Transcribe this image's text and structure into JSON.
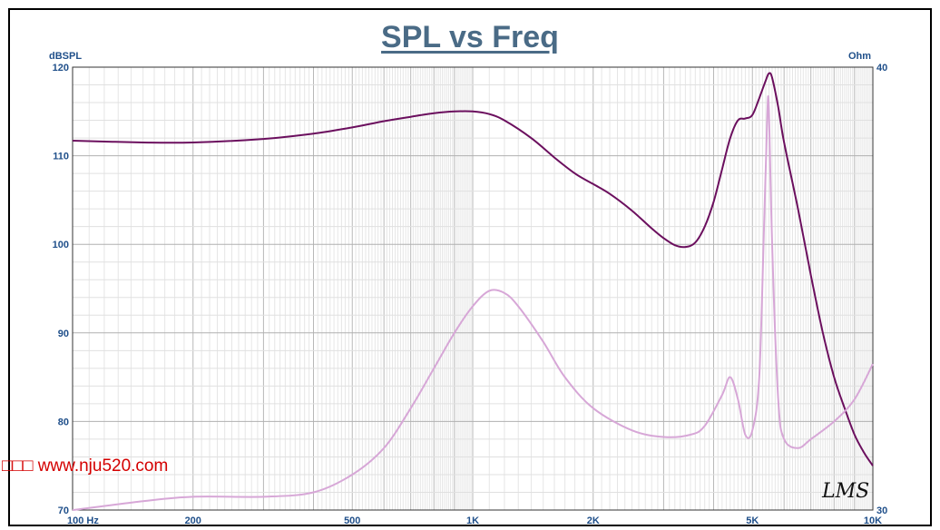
{
  "chart_data": {
    "type": "line",
    "title": "SPL vs Freq",
    "y_left_label": "dBSPL",
    "y_right_label": "Ohm",
    "xscale": "log",
    "xlim": [
      100,
      10000
    ],
    "ylim": [
      70,
      120
    ],
    "y2lim": [
      30,
      40
    ],
    "x_tick_labels": [
      {
        "value": 100,
        "label": "100 Hz"
      },
      {
        "value": 200,
        "label": "200"
      },
      {
        "value": 500,
        "label": "500"
      },
      {
        "value": 1000,
        "label": "1K"
      },
      {
        "value": 2000,
        "label": "2K"
      },
      {
        "value": 5000,
        "label": "5K"
      },
      {
        "value": 10000,
        "label": "10K"
      }
    ],
    "y_left_ticks": [
      70,
      80,
      90,
      100,
      110,
      120
    ],
    "y_right_ticks": [
      30,
      40
    ],
    "grid": true,
    "series": [
      {
        "axis": "left",
        "color": "#6b0f5e",
        "points": [
          [
            100,
            111.7
          ],
          [
            150,
            111.5
          ],
          [
            200,
            111.5
          ],
          [
            300,
            111.9
          ],
          [
            400,
            112.5
          ],
          [
            500,
            113.2
          ],
          [
            600,
            113.9
          ],
          [
            700,
            114.4
          ],
          [
            800,
            114.8
          ],
          [
            900,
            115.0
          ],
          [
            1000,
            115.0
          ],
          [
            1100,
            114.7
          ],
          [
            1200,
            114.0
          ],
          [
            1400,
            112.0
          ],
          [
            1600,
            109.8
          ],
          [
            1800,
            108.0
          ],
          [
            2000,
            106.8
          ],
          [
            2200,
            105.7
          ],
          [
            2500,
            103.8
          ],
          [
            2800,
            101.8
          ],
          [
            3000,
            100.7
          ],
          [
            3200,
            99.9
          ],
          [
            3400,
            99.7
          ],
          [
            3600,
            100.2
          ],
          [
            3800,
            102.0
          ],
          [
            4000,
            104.8
          ],
          [
            4200,
            108.5
          ],
          [
            4400,
            112.0
          ],
          [
            4600,
            114.0
          ],
          [
            4800,
            114.2
          ],
          [
            5000,
            114.6
          ],
          [
            5200,
            116.5
          ],
          [
            5400,
            118.5
          ],
          [
            5500,
            119.3
          ],
          [
            5600,
            118.8
          ],
          [
            5800,
            115.5
          ],
          [
            6000,
            111.5
          ],
          [
            6500,
            104.0
          ],
          [
            7000,
            96.5
          ],
          [
            7500,
            90.0
          ],
          [
            8000,
            85.0
          ],
          [
            8500,
            81.5
          ],
          [
            9000,
            78.5
          ],
          [
            9500,
            76.5
          ],
          [
            10000,
            75.0
          ]
        ]
      },
      {
        "axis": "right",
        "color": "#d7a7d7",
        "points": [
          [
            100,
            30.0
          ],
          [
            150,
            30.2
          ],
          [
            200,
            30.3
          ],
          [
            300,
            30.3
          ],
          [
            400,
            30.4
          ],
          [
            500,
            30.8
          ],
          [
            600,
            31.4
          ],
          [
            700,
            32.3
          ],
          [
            800,
            33.2
          ],
          [
            900,
            34.0
          ],
          [
            1000,
            34.6
          ],
          [
            1100,
            34.95
          ],
          [
            1200,
            34.9
          ],
          [
            1300,
            34.6
          ],
          [
            1500,
            33.8
          ],
          [
            1700,
            33.0
          ],
          [
            2000,
            32.3
          ],
          [
            2500,
            31.8
          ],
          [
            3000,
            31.65
          ],
          [
            3500,
            31.7
          ],
          [
            3800,
            31.9
          ],
          [
            4200,
            32.6
          ],
          [
            4400,
            33.0
          ],
          [
            4600,
            32.5
          ],
          [
            4800,
            31.7
          ],
          [
            5000,
            31.8
          ],
          [
            5200,
            33.0
          ],
          [
            5350,
            36.5
          ],
          [
            5450,
            39.0
          ],
          [
            5500,
            39.0
          ],
          [
            5600,
            36.0
          ],
          [
            5800,
            32.5
          ],
          [
            6000,
            31.6
          ],
          [
            6500,
            31.4
          ],
          [
            7000,
            31.6
          ],
          [
            8000,
            32.0
          ],
          [
            9000,
            32.5
          ],
          [
            10000,
            33.3
          ]
        ]
      }
    ]
  },
  "watermark": "□□□ www.nju520.com",
  "signature": "LMS"
}
